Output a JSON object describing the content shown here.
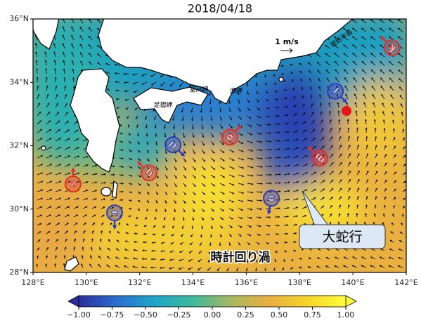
{
  "chart_data": {
    "type": "map",
    "title": "2018/04/18",
    "xlim": [
      128,
      142
    ],
    "ylim": [
      28,
      36
    ],
    "xticks": [
      {
        "value": 128,
        "label": "128°E"
      },
      {
        "value": 130,
        "label": "130°E"
      },
      {
        "value": 132,
        "label": "132°E"
      },
      {
        "value": 134,
        "label": "134°E"
      },
      {
        "value": 136,
        "label": "136°E"
      },
      {
        "value": 138,
        "label": "138°E"
      },
      {
        "value": 140,
        "label": "140°E"
      },
      {
        "value": 142,
        "label": "142°E"
      }
    ],
    "yticks": [
      {
        "value": 28,
        "label": "28°N"
      },
      {
        "value": 30,
        "label": "30°N"
      },
      {
        "value": 32,
        "label": "32°N"
      },
      {
        "value": 34,
        "label": "34°N"
      },
      {
        "value": 36,
        "label": "36°N"
      }
    ],
    "colorbar": {
      "lim": [
        -1,
        1
      ],
      "ticks": [
        {
          "value": -1,
          "label": "−1.00"
        },
        {
          "value": -0.75,
          "label": "−0.75"
        },
        {
          "value": -0.5,
          "label": "−0.50"
        },
        {
          "value": -0.25,
          "label": "−0.25"
        },
        {
          "value": 0,
          "label": "0.00"
        },
        {
          "value": 0.25,
          "label": "0.25"
        },
        {
          "value": 0.5,
          "label": "0.50"
        },
        {
          "value": 0.75,
          "label": "0.75"
        },
        {
          "value": 1,
          "label": "1.00"
        }
      ],
      "colors": [
        "#2b2f9e",
        "#2a6fd0",
        "#1ea6c8",
        "#3fb99a",
        "#a8b860",
        "#eab040",
        "#f7d52a",
        "#fdfd3c"
      ]
    },
    "eddies": [
      {
        "label": "k",
        "lon": 141.47,
        "lat": 35.09,
        "color": "#e0302c"
      },
      {
        "label": "l",
        "lon": 139.34,
        "lat": 33.72,
        "color": "#2c3cc0"
      },
      {
        "label": "m",
        "lon": 138.76,
        "lat": 31.61,
        "color": "#e0302c"
      },
      {
        "label": "n",
        "lon": 136.94,
        "lat": 30.34,
        "color": "#2c3cc0"
      },
      {
        "label": "o",
        "lon": 135.38,
        "lat": 32.27,
        "color": "#e0302c"
      },
      {
        "label": "p",
        "lon": 133.25,
        "lat": 32.03,
        "color": "#2c3cc0"
      },
      {
        "label": "q",
        "lon": 132.35,
        "lat": 31.14,
        "color": "#e0302c"
      },
      {
        "label": "r",
        "lon": 131.06,
        "lat": 29.88,
        "color": "#2c3cc0"
      },
      {
        "label": "s",
        "lon": 129.5,
        "lat": 30.79,
        "color": "#e0302c"
      }
    ],
    "annotations": {
      "scale": "1 m/s",
      "meander": "大蛇行",
      "eddy": "時計回り渦",
      "places": [
        "足摺岬",
        "室戸岬",
        "潮岬",
        "房総半島"
      ]
    }
  }
}
